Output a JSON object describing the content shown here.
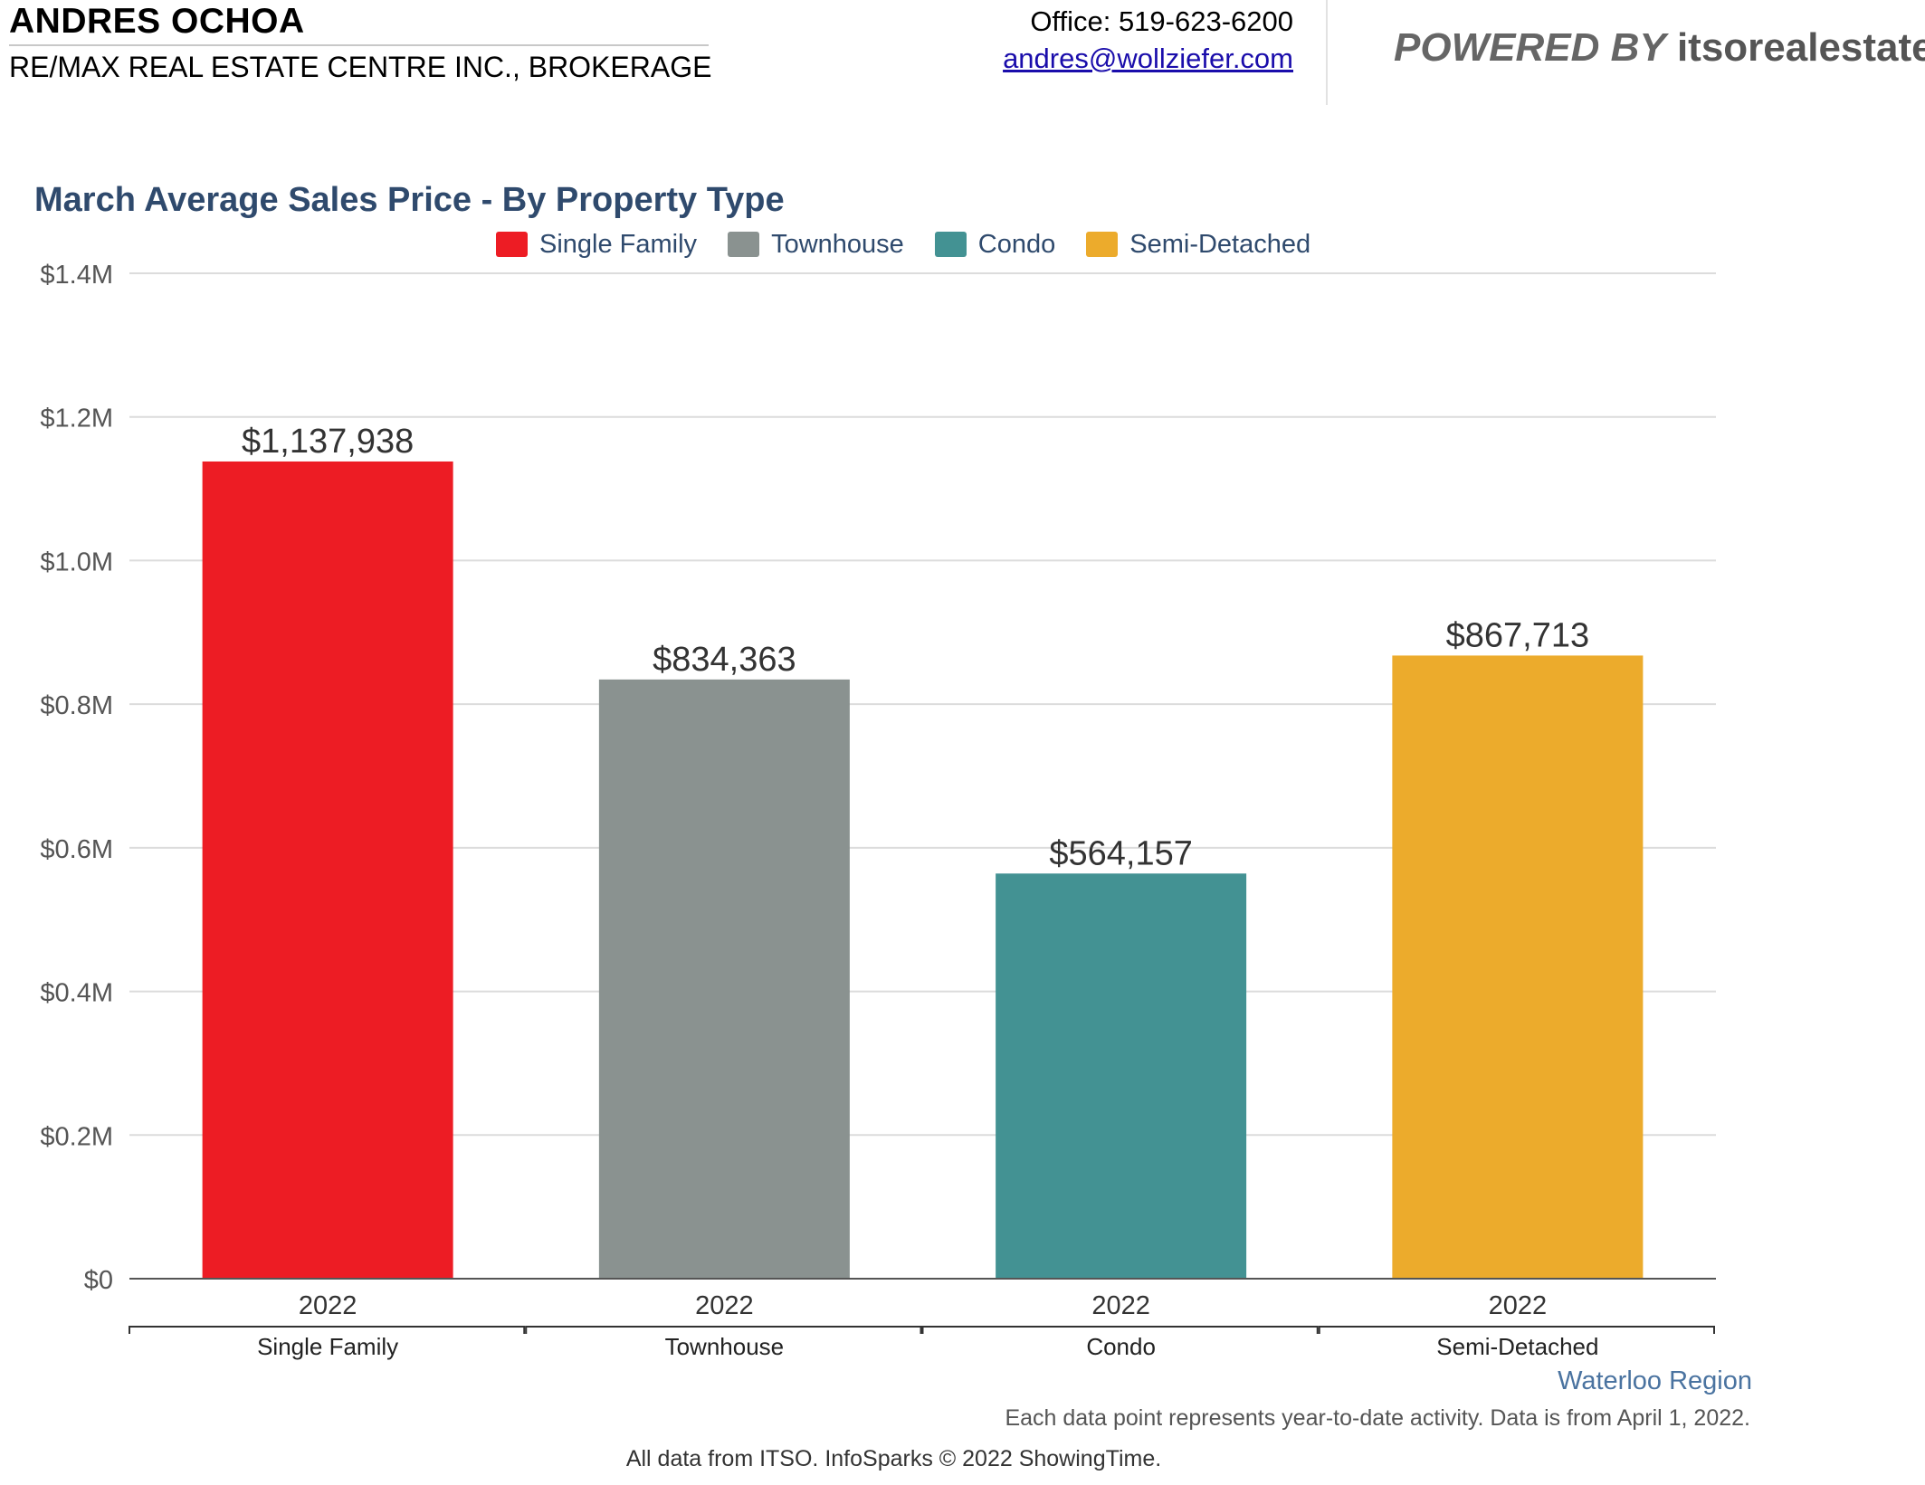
{
  "header": {
    "agent_name": "ANDRES OCHOA",
    "brokerage": "RE/MAX REAL ESTATE CENTRE INC., BROKERAGE",
    "office": "Office: 519-623-6200",
    "email": "andres@wollziefer.com",
    "powered_by_prefix": "POWERED BY",
    "powered_by_site": "itsorealestate.ca"
  },
  "chart_data": {
    "type": "bar",
    "title": "March Average Sales Price - By Property Type",
    "xlabel": "",
    "ylabel": "",
    "ylim": [
      0,
      1400000
    ],
    "yticks": [
      0,
      200000,
      400000,
      600000,
      800000,
      1000000,
      1200000,
      1400000
    ],
    "ytick_labels": [
      "$0",
      "$0.2M",
      "$0.4M",
      "$0.6M",
      "$0.8M",
      "$1.0M",
      "$1.2M",
      "$1.4M"
    ],
    "grid": true,
    "legend_position": "top-center",
    "categories": [
      "Single Family",
      "Townhouse",
      "Condo",
      "Semi-Detached"
    ],
    "sub_categories": [
      "2022",
      "2022",
      "2022",
      "2022"
    ],
    "values": [
      1137938,
      834363,
      564157,
      867713
    ],
    "value_labels": [
      "$1,137,938",
      "$834,363",
      "$564,157",
      "$867,713"
    ],
    "colors": [
      "#ed1c24",
      "#8a9290",
      "#439293",
      "#ecab2c"
    ],
    "legend": [
      {
        "label": "Single Family",
        "color": "#ed1c24"
      },
      {
        "label": "Townhouse",
        "color": "#8a9290"
      },
      {
        "label": "Condo",
        "color": "#439293"
      },
      {
        "label": "Semi-Detached",
        "color": "#ecab2c"
      }
    ]
  },
  "footer": {
    "region": "Waterloo Region",
    "note": "Each data point represents year-to-date activity. Data is from April 1, 2022.",
    "credits": "All data from ITSO. InfoSparks © 2022 ShowingTime."
  }
}
